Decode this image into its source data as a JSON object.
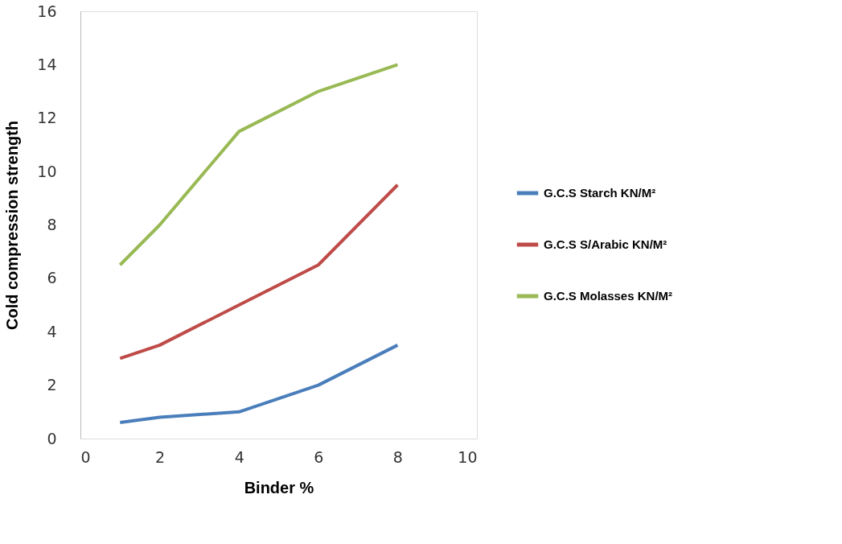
{
  "chart_data": {
    "type": "line",
    "xlabel": "Binder %",
    "ylabel": "Cold compression strength",
    "x": [
      1,
      2,
      4,
      6,
      8
    ],
    "series": [
      {
        "name": "G.C.S Starch KN/M²",
        "color": "#4a7ebb",
        "values": [
          0.6,
          0.8,
          1.0,
          2.0,
          3.5
        ]
      },
      {
        "name": "G.C.S S/Arabic KN/M²",
        "color": "#be4b48",
        "values": [
          3.0,
          3.5,
          5.0,
          6.5,
          9.5
        ]
      },
      {
        "name": "G.C.S Molasses KN/M²",
        "color": "#98b954",
        "values": [
          6.5,
          8.0,
          11.5,
          13.0,
          14.0
        ]
      }
    ],
    "xlim": [
      0,
      10
    ],
    "xticks": [
      0,
      2,
      4,
      6,
      8,
      10
    ],
    "ylim": [
      0,
      16
    ],
    "yticks": [
      0,
      2,
      4,
      6,
      8,
      10,
      12,
      14,
      16
    ],
    "grid": false,
    "legend": "right",
    "marker": "none",
    "line_style": "solid"
  }
}
